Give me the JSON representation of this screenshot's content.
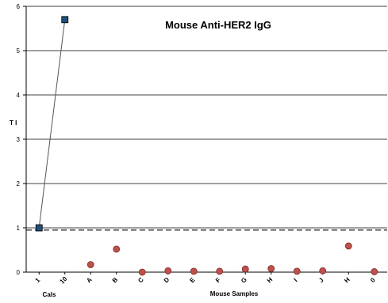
{
  "chart_data": {
    "type": "scatter",
    "title": "Mouse Anti-HER2 IgG",
    "ylabel": "T I",
    "ylim": [
      0,
      6
    ],
    "yticks": [
      0,
      1,
      2,
      3,
      4,
      5,
      6
    ],
    "grid": true,
    "x_categories": [
      "1",
      "10",
      "A",
      "B",
      "C",
      "D",
      "E",
      "F",
      "G",
      "H",
      "I",
      "J",
      "H",
      "0"
    ],
    "group_labels": [
      "Cals",
      "Mouse Samples"
    ],
    "cutoff": 0.95,
    "series": [
      {
        "points": [
          {
            "x": "1",
            "y": 1.0
          },
          {
            "x": "10",
            "y": 5.7
          }
        ],
        "marker": "square",
        "color": "#1f4e79",
        "connected": true
      },
      {
        "points": [
          {
            "x": "A",
            "y": 0.17
          },
          {
            "x": "B",
            "y": 0.52
          },
          {
            "x": "C",
            "y": 0.0
          },
          {
            "x": "D",
            "y": 0.03
          },
          {
            "x": "E",
            "y": 0.02
          },
          {
            "x": "F",
            "y": 0.02
          },
          {
            "x": "G",
            "y": 0.07
          },
          {
            "x": "H",
            "y": 0.08
          },
          {
            "x": "I",
            "y": 0.02
          },
          {
            "x": "J",
            "y": 0.03
          },
          {
            "x": "H",
            "y": 0.59
          },
          {
            "x": "0",
            "y": 0.01
          }
        ],
        "marker": "circle",
        "color": "#c0504d",
        "connected": false
      }
    ]
  }
}
